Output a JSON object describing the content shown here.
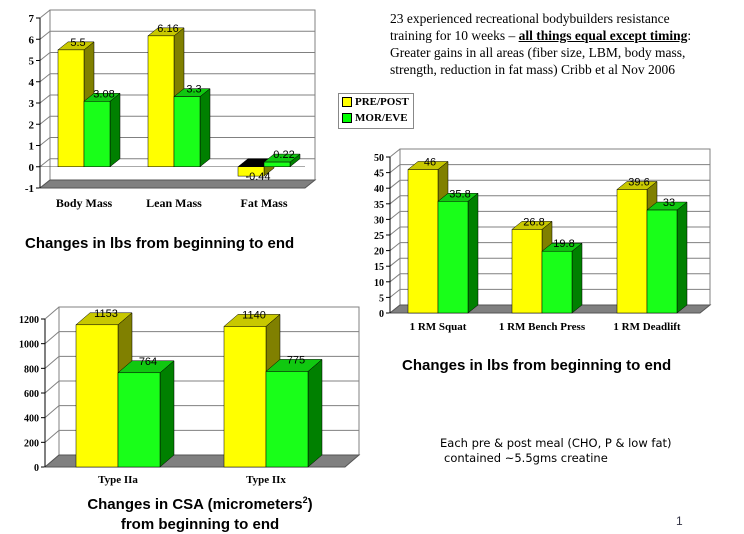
{
  "description_text": {
    "line1": "23 experienced recreational bodybuilders resistance",
    "line2_prefix": "training for 10 weeks – ",
    "line2_emphasis": "all things equal except timing",
    "line2_suffix": ":",
    "line3": "Greater gains in all areas (fiber size, LBM, body mass,",
    "line4": "strength, reduction in fat mass) Cribb et al Nov 2006"
  },
  "legend": [
    {
      "label": "PRE/POST",
      "color": "#ffff00"
    },
    {
      "label": "MOR/EVE",
      "color": "#00ff00"
    }
  ],
  "captions": {
    "body_composition": "Changes in lbs from beginning to end",
    "strength": "Changes in lbs from beginning to end",
    "csa_line1": "Changes in CSA (micrometers",
    "csa_sup": "2",
    "csa_line1_end": ")",
    "csa_line2": "from beginning to end"
  },
  "note": {
    "line1": "Each pre & post meal (CHO, P & low fat)",
    "line2": "contained ~5.5gms creatine"
  },
  "page_number": "1",
  "colors": {
    "yellow": "#ffff00",
    "green": "#00ff00",
    "floor": "#808080"
  },
  "chart_data": [
    {
      "type": "bar",
      "style": "3d-clustered",
      "categories": [
        "Body Mass",
        "Lean Mass",
        "Fat Mass"
      ],
      "series": [
        {
          "name": "PRE/POST",
          "values": [
            5.5,
            6.16,
            -0.44
          ]
        },
        {
          "name": "MOR/EVE",
          "values": [
            3.08,
            3.3,
            0.22
          ]
        }
      ],
      "data_labels": [
        [
          "5.5",
          "6.16",
          "-0.44"
        ],
        [
          "3.08",
          "3.3",
          "0.22"
        ]
      ],
      "ylim": [
        -1,
        7
      ],
      "yticks": [
        -1,
        0,
        1,
        2,
        3,
        4,
        5,
        6,
        7
      ],
      "grid": true
    },
    {
      "type": "bar",
      "style": "3d-clustered",
      "categories": [
        "1 RM Squat",
        "1 RM Bench Press",
        "1 RM Deadlift"
      ],
      "series": [
        {
          "name": "PRE/POST",
          "values": [
            46,
            26.8,
            39.6
          ]
        },
        {
          "name": "MOR/EVE",
          "values": [
            35.8,
            19.8,
            33
          ]
        }
      ],
      "data_labels": [
        [
          "46",
          "26.8",
          "39.6"
        ],
        [
          "35.8",
          "19.8",
          "33"
        ]
      ],
      "ylim": [
        0,
        50
      ],
      "yticks": [
        0,
        5,
        10,
        15,
        20,
        25,
        30,
        35,
        40,
        45,
        50
      ],
      "grid": true
    },
    {
      "type": "bar",
      "style": "3d-clustered",
      "categories": [
        "Type IIa",
        "Type IIx"
      ],
      "series": [
        {
          "name": "PRE/POST",
          "values": [
            1153,
            1140
          ]
        },
        {
          "name": "MOR/EVE",
          "values": [
            764,
            775
          ]
        }
      ],
      "data_labels": [
        [
          "1153",
          "1140"
        ],
        [
          "764",
          "775"
        ]
      ],
      "ylim": [
        0,
        1200
      ],
      "yticks": [
        0,
        200,
        400,
        600,
        800,
        1000,
        1200
      ],
      "grid": true
    }
  ]
}
